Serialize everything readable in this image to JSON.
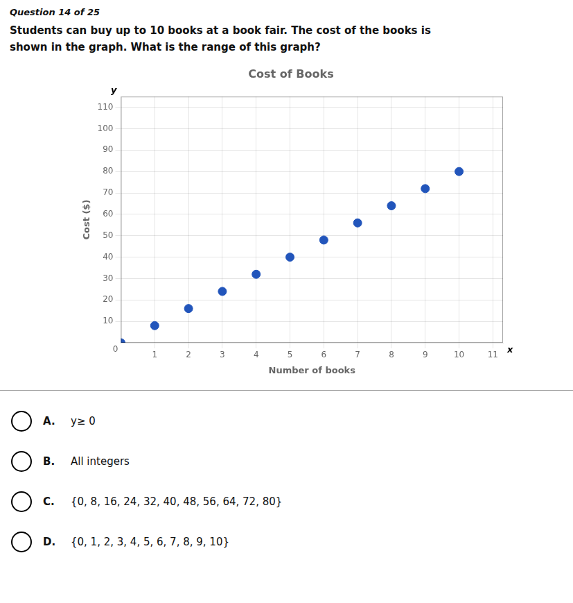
{
  "question_header": "Question 14 of 25",
  "question_text": [
    "Students can buy up to 10 books at a book fair. The cost of the books is",
    "shown in the graph. What is the range of this graph?"
  ],
  "chart_data": {
    "type": "scatter",
    "title": "Cost of Books",
    "xlabel": "Number of books",
    "ylabel": "Cost ($)",
    "x": [
      0,
      1,
      2,
      3,
      4,
      5,
      6,
      7,
      8,
      9,
      10
    ],
    "values": [
      0,
      8,
      16,
      24,
      32,
      40,
      48,
      56,
      64,
      72,
      80
    ],
    "color": "#2255bb",
    "xlim": [
      0,
      11.3
    ],
    "ylim": [
      0,
      115
    ],
    "xticks": [
      1,
      2,
      3,
      4,
      5,
      6,
      7,
      8,
      9,
      10,
      11
    ],
    "yticks": [
      10,
      20,
      30,
      40,
      50,
      60,
      70,
      80,
      90,
      100,
      110
    ],
    "grid": true,
    "annotations": [
      "y",
      "x",
      "0"
    ]
  },
  "answer_options": [
    {
      "label": "A.",
      "text": "y≥ 0"
    },
    {
      "label": "B.",
      "text": "All integers"
    },
    {
      "label": "C.",
      "text": "{0, 8, 16, 24, 32, 40, 48, 56, 64, 72, 80}"
    },
    {
      "label": "D.",
      "text": "{0, 1, 2, 3, 4, 5, 6, 7, 8, 9, 10}"
    }
  ]
}
